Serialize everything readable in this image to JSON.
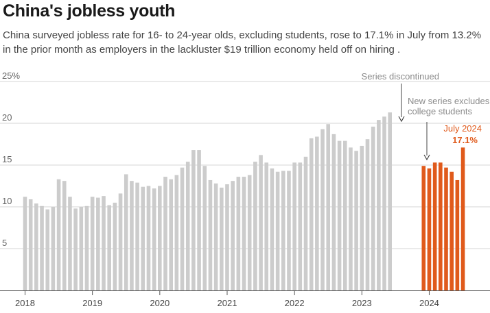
{
  "header": {
    "title": "China's jobless youth",
    "subtitle": "China surveyed jobless rate for 16- to 24-year olds, excluding students, rose to 17.1% in July from 13.2% in the prior month as employers in the lackluster $19 trillion economy held off on hiring ."
  },
  "chart_data": {
    "type": "bar",
    "title": "China's jobless youth",
    "ylim": [
      0,
      25
    ],
    "yticks": [
      {
        "value": 25,
        "label": "25%"
      },
      {
        "value": 20,
        "label": "20"
      },
      {
        "value": 15,
        "label": "15"
      },
      {
        "value": 10,
        "label": "10"
      },
      {
        "value": 5,
        "label": "5"
      }
    ],
    "grid": true,
    "xticks": [
      "2018",
      "2019",
      "2020",
      "2021",
      "2022",
      "2023",
      "2024"
    ],
    "series": [
      {
        "color": "#cccccc",
        "x": [
          "2018-01",
          "2018-02",
          "2018-03",
          "2018-04",
          "2018-05",
          "2018-06",
          "2018-07",
          "2018-08",
          "2018-09",
          "2018-10",
          "2018-11",
          "2018-12",
          "2019-01",
          "2019-02",
          "2019-03",
          "2019-04",
          "2019-05",
          "2019-06",
          "2019-07",
          "2019-08",
          "2019-09",
          "2019-10",
          "2019-11",
          "2019-12",
          "2020-01",
          "2020-02",
          "2020-03",
          "2020-04",
          "2020-05",
          "2020-06",
          "2020-07",
          "2020-08",
          "2020-09",
          "2020-10",
          "2020-11",
          "2020-12",
          "2021-01",
          "2021-02",
          "2021-03",
          "2021-04",
          "2021-05",
          "2021-06",
          "2021-07",
          "2021-08",
          "2021-09",
          "2021-10",
          "2021-11",
          "2021-12",
          "2022-01",
          "2022-02",
          "2022-03",
          "2022-04",
          "2022-05",
          "2022-06",
          "2022-07",
          "2022-08",
          "2022-09",
          "2022-10",
          "2022-11",
          "2022-12",
          "2023-01",
          "2023-02",
          "2023-03",
          "2023-04",
          "2023-05",
          "2023-06"
        ],
        "values": [
          11.2,
          10.9,
          10.4,
          10.1,
          9.7,
          10.0,
          13.3,
          13.1,
          11.2,
          9.8,
          10.0,
          10.1,
          11.2,
          11.1,
          11.3,
          10.2,
          10.5,
          11.6,
          13.9,
          13.1,
          12.9,
          12.4,
          12.5,
          12.2,
          12.5,
          13.6,
          13.3,
          13.8,
          14.7,
          15.4,
          16.8,
          16.8,
          14.9,
          13.2,
          12.8,
          12.3,
          12.7,
          13.1,
          13.6,
          13.6,
          13.8,
          15.4,
          16.2,
          15.3,
          14.6,
          14.2,
          14.3,
          14.3,
          15.3,
          15.3,
          16.0,
          18.2,
          18.4,
          19.3,
          19.9,
          18.7,
          17.9,
          17.9,
          17.1,
          16.7,
          17.3,
          18.1,
          19.6,
          20.4,
          20.8,
          21.3
        ]
      },
      {
        "color": "#e05a1b",
        "x": [
          "2023-12",
          "2024-01",
          "2024-02",
          "2024-03",
          "2024-04",
          "2024-05",
          "2024-06",
          "2024-07"
        ],
        "values": [
          14.9,
          14.6,
          15.3,
          15.3,
          14.7,
          14.2,
          13.2,
          17.1
        ]
      }
    ],
    "annotations": {
      "discontinued": "Series discontinued",
      "new_series_line1": "New series excludes",
      "new_series_line2": "college students",
      "latest_label": "July 2024",
      "latest_value": "17.1%"
    }
  }
}
